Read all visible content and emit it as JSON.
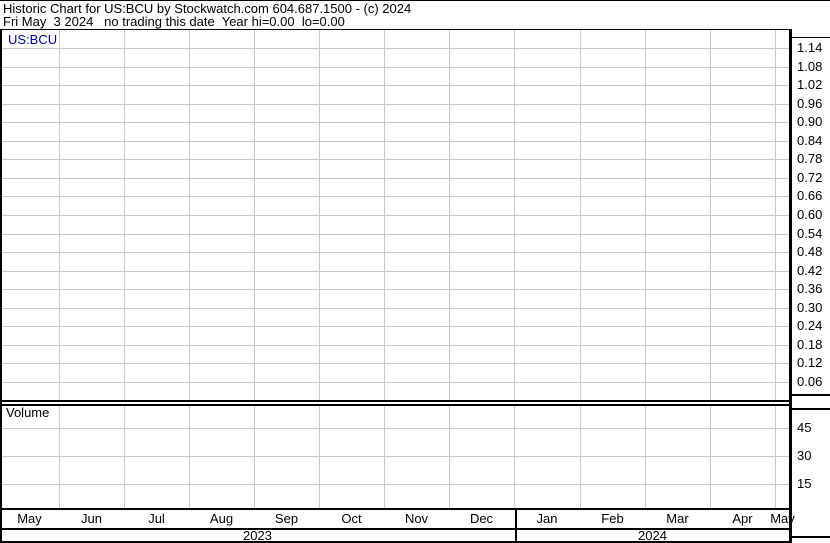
{
  "header": {
    "title_line": "Historic Chart for US:BCU by Stockwatch.com 604.687.1500 - (c) 2024",
    "status_line": "Fri May  3 2024   no trading this date  Year hi=0.00  lo=0.00"
  },
  "price_chart": {
    "symbol_label": "US:BCU",
    "scale_labels": [
      "1.14",
      "1.08",
      "1.02",
      "0.96",
      "0.90",
      "0.84",
      "0.78",
      "0.72",
      "0.66",
      "0.60",
      "0.54",
      "0.48",
      "0.42",
      "0.36",
      "0.30",
      "0.24",
      "0.18",
      "0.12",
      "0.06"
    ]
  },
  "volume_chart": {
    "label": "Volume",
    "scale_labels": [
      "45",
      "30",
      "15"
    ]
  },
  "x_axis": {
    "months": [
      "May",
      "Jun",
      "Jul",
      "Aug",
      "Sep",
      "Oct",
      "Nov",
      "Dec",
      "Jan",
      "Feb",
      "Mar",
      "Apr",
      "May"
    ],
    "years": [
      "2023",
      "2024"
    ]
  },
  "colors": {
    "background": "#ffffff",
    "border": "#000000",
    "grid": "#c9c9c9",
    "symbol_text": "#000099",
    "text": "#000000"
  },
  "chart_data": {
    "type": "line",
    "title": "Historic Chart for US:BCU by Stockwatch.com 604.687.1500 - (c) 2024",
    "subtitle": "Fri May  3 2024   no trading this date  Year hi=0.00  lo=0.00",
    "x_categories_months": [
      "May 2023",
      "Jun 2023",
      "Jul 2023",
      "Aug 2023",
      "Sep 2023",
      "Oct 2023",
      "Nov 2023",
      "Dec 2023",
      "Jan 2024",
      "Feb 2024",
      "Mar 2024",
      "Apr 2024",
      "May 2024"
    ],
    "series": [
      {
        "name": "US:BCU price",
        "values": []
      },
      {
        "name": "Volume",
        "values": []
      }
    ],
    "note": "Chart area is empty - no trading data plotted for this symbol/date",
    "price_axis": {
      "side": "right",
      "ticks": [
        1.14,
        1.08,
        1.02,
        0.96,
        0.9,
        0.84,
        0.78,
        0.72,
        0.66,
        0.6,
        0.54,
        0.48,
        0.42,
        0.36,
        0.3,
        0.24,
        0.18,
        0.12,
        0.06
      ]
    },
    "volume_axis": {
      "side": "right",
      "ticks": [
        45,
        30,
        15
      ]
    },
    "grid": true,
    "legend": "none",
    "year_hi": "0.00",
    "year_lo": "0.00"
  }
}
